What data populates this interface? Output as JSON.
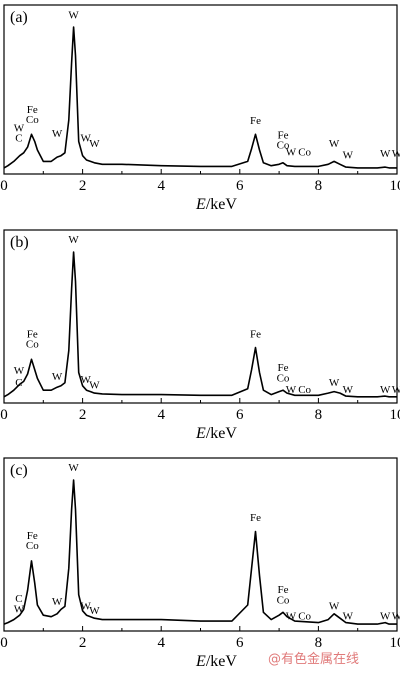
{
  "chart_data": [
    {
      "type": "line",
      "panel_label": "(a)",
      "xlabel_italic": "E",
      "xlabel_rest": "/keV",
      "xlim": [
        0,
        10
      ],
      "x_ticks": [
        0,
        2,
        4,
        6,
        8,
        10
      ],
      "x": [
        0,
        0.1,
        0.25,
        0.4,
        0.5,
        0.6,
        0.7,
        0.78,
        0.85,
        1.0,
        1.2,
        1.35,
        1.45,
        1.55,
        1.65,
        1.72,
        1.77,
        1.82,
        1.9,
        2.0,
        2.1,
        2.2,
        2.3,
        2.5,
        3.0,
        4.0,
        5.0,
        5.8,
        6.2,
        6.3,
        6.4,
        6.5,
        6.6,
        6.8,
        7.0,
        7.1,
        7.2,
        7.4,
        8.0,
        8.25,
        8.4,
        8.55,
        8.7,
        9.0,
        9.5,
        9.7,
        9.8,
        10.0
      ],
      "y": [
        0.015,
        0.03,
        0.06,
        0.1,
        0.12,
        0.16,
        0.25,
        0.2,
        0.14,
        0.06,
        0.06,
        0.09,
        0.1,
        0.12,
        0.35,
        0.75,
        1.0,
        0.8,
        0.2,
        0.1,
        0.07,
        0.06,
        0.05,
        0.04,
        0.04,
        0.03,
        0.025,
        0.025,
        0.06,
        0.15,
        0.25,
        0.14,
        0.05,
        0.03,
        0.04,
        0.05,
        0.03,
        0.025,
        0.025,
        0.04,
        0.06,
        0.04,
        0.02,
        0.015,
        0.015,
        0.02,
        0.015,
        0.015
      ],
      "annotations": [
        {
          "text": "W",
          "x": 0.38,
          "y": 0.27
        },
        {
          "text": "C",
          "x": 0.38,
          "y": 0.2
        },
        {
          "text": "Fe",
          "x": 0.72,
          "y": 0.4
        },
        {
          "text": "Co",
          "x": 0.72,
          "y": 0.33
        },
        {
          "text": "W",
          "x": 1.35,
          "y": 0.23
        },
        {
          "text": "W",
          "x": 1.77,
          "y": 1.06
        },
        {
          "text": "W",
          "x": 2.08,
          "y": 0.2
        },
        {
          "text": "W",
          "x": 2.3,
          "y": 0.16
        },
        {
          "text": "Fe",
          "x": 6.4,
          "y": 0.32
        },
        {
          "text": "Fe",
          "x": 7.1,
          "y": 0.22
        },
        {
          "text": "Co",
          "x": 7.1,
          "y": 0.15
        },
        {
          "text": "W",
          "x": 7.3,
          "y": 0.1
        },
        {
          "text": "Co",
          "x": 7.65,
          "y": 0.1
        },
        {
          "text": "W",
          "x": 8.4,
          "y": 0.16
        },
        {
          "text": "W",
          "x": 8.75,
          "y": 0.08
        },
        {
          "text": "W",
          "x": 9.7,
          "y": 0.09
        },
        {
          "text": "W",
          "x": 10.0,
          "y": 0.09
        }
      ]
    },
    {
      "type": "line",
      "panel_label": "(b)",
      "xlabel_italic": "E",
      "xlabel_rest": "/keV",
      "xlim": [
        0,
        10
      ],
      "x_ticks": [
        0,
        2,
        4,
        6,
        8,
        10
      ],
      "x": [
        0,
        0.1,
        0.25,
        0.4,
        0.5,
        0.6,
        0.7,
        0.78,
        0.85,
        1.0,
        1.2,
        1.35,
        1.45,
        1.55,
        1.65,
        1.72,
        1.77,
        1.82,
        1.9,
        2.0,
        2.1,
        2.2,
        2.3,
        2.5,
        3.0,
        4.0,
        5.0,
        5.8,
        6.2,
        6.3,
        6.4,
        6.5,
        6.6,
        6.8,
        7.0,
        7.1,
        7.2,
        7.4,
        8.0,
        8.25,
        8.4,
        8.55,
        8.7,
        9.0,
        9.5,
        9.7,
        9.8,
        10.0
      ],
      "y": [
        0.015,
        0.03,
        0.06,
        0.1,
        0.12,
        0.17,
        0.27,
        0.2,
        0.14,
        0.06,
        0.06,
        0.08,
        0.09,
        0.11,
        0.33,
        0.75,
        1.0,
        0.8,
        0.18,
        0.09,
        0.06,
        0.05,
        0.04,
        0.035,
        0.03,
        0.03,
        0.025,
        0.025,
        0.07,
        0.2,
        0.35,
        0.18,
        0.06,
        0.03,
        0.05,
        0.06,
        0.04,
        0.025,
        0.025,
        0.04,
        0.05,
        0.04,
        0.02,
        0.015,
        0.015,
        0.02,
        0.015,
        0.015
      ],
      "annotations": [
        {
          "text": "W",
          "x": 0.38,
          "y": 0.17
        },
        {
          "text": "C",
          "x": 0.38,
          "y": 0.09
        },
        {
          "text": "Fe",
          "x": 0.72,
          "y": 0.42
        },
        {
          "text": "Co",
          "x": 0.72,
          "y": 0.35
        },
        {
          "text": "W",
          "x": 1.35,
          "y": 0.13
        },
        {
          "text": "W",
          "x": 1.77,
          "y": 1.06
        },
        {
          "text": "W",
          "x": 2.08,
          "y": 0.11
        },
        {
          "text": "W",
          "x": 2.3,
          "y": 0.07
        },
        {
          "text": "Fe",
          "x": 6.4,
          "y": 0.42
        },
        {
          "text": "Fe",
          "x": 7.1,
          "y": 0.19
        },
        {
          "text": "Co",
          "x": 7.1,
          "y": 0.12
        },
        {
          "text": "W",
          "x": 7.3,
          "y": 0.04
        },
        {
          "text": "Co",
          "x": 7.65,
          "y": 0.04
        },
        {
          "text": "W",
          "x": 8.4,
          "y": 0.09
        },
        {
          "text": "W",
          "x": 8.75,
          "y": 0.04
        },
        {
          "text": "W",
          "x": 9.7,
          "y": 0.04
        },
        {
          "text": "W",
          "x": 10.0,
          "y": 0.04
        }
      ]
    },
    {
      "type": "line",
      "panel_label": "(c)",
      "xlabel_italic": "E",
      "xlabel_rest": "/keV",
      "xlim": [
        0,
        10
      ],
      "x_ticks": [
        0,
        2,
        4,
        6,
        8,
        10
      ],
      "x": [
        0,
        0.1,
        0.25,
        0.4,
        0.5,
        0.6,
        0.7,
        0.78,
        0.85,
        1.0,
        1.2,
        1.35,
        1.45,
        1.55,
        1.65,
        1.72,
        1.77,
        1.82,
        1.9,
        2.0,
        2.1,
        2.2,
        2.3,
        2.5,
        3.0,
        4.0,
        5.0,
        5.8,
        6.2,
        6.3,
        6.4,
        6.5,
        6.6,
        6.8,
        7.0,
        7.1,
        7.2,
        7.4,
        8.0,
        8.25,
        8.4,
        8.55,
        8.7,
        9.0,
        9.5,
        9.7,
        9.8,
        10.0
      ],
      "y": [
        0.02,
        0.03,
        0.05,
        0.08,
        0.12,
        0.25,
        0.45,
        0.3,
        0.15,
        0.08,
        0.07,
        0.09,
        0.12,
        0.14,
        0.4,
        0.8,
        1.0,
        0.8,
        0.22,
        0.11,
        0.08,
        0.07,
        0.06,
        0.05,
        0.05,
        0.05,
        0.04,
        0.04,
        0.15,
        0.4,
        0.65,
        0.35,
        0.1,
        0.05,
        0.08,
        0.1,
        0.07,
        0.04,
        0.03,
        0.05,
        0.09,
        0.06,
        0.03,
        0.02,
        0.02,
        0.03,
        0.02,
        0.02
      ],
      "annotations": [
        {
          "text": "C",
          "x": 0.38,
          "y": 0.17
        },
        {
          "text": "W",
          "x": 0.38,
          "y": 0.1
        },
        {
          "text": "Fe",
          "x": 0.72,
          "y": 0.6
        },
        {
          "text": "Co",
          "x": 0.72,
          "y": 0.53
        },
        {
          "text": "W",
          "x": 1.35,
          "y": 0.15
        },
        {
          "text": "W",
          "x": 1.77,
          "y": 1.06
        },
        {
          "text": "W",
          "x": 2.08,
          "y": 0.12
        },
        {
          "text": "W",
          "x": 2.3,
          "y": 0.09
        },
        {
          "text": "Fe",
          "x": 6.4,
          "y": 0.72
        },
        {
          "text": "Fe",
          "x": 7.1,
          "y": 0.23
        },
        {
          "text": "Co",
          "x": 7.1,
          "y": 0.16
        },
        {
          "text": "W",
          "x": 7.3,
          "y": 0.05
        },
        {
          "text": "Co",
          "x": 7.65,
          "y": 0.05
        },
        {
          "text": "W",
          "x": 8.4,
          "y": 0.12
        },
        {
          "text": "W",
          "x": 8.75,
          "y": 0.05
        },
        {
          "text": "W",
          "x": 9.7,
          "y": 0.05
        },
        {
          "text": "W",
          "x": 10.0,
          "y": 0.05
        }
      ]
    }
  ],
  "watermark": "@有色金属在线"
}
